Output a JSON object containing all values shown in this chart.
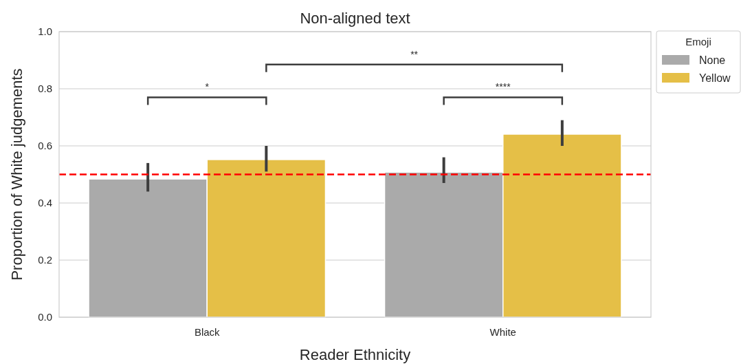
{
  "chart_data": {
    "type": "bar",
    "title": "Non-aligned text",
    "xlabel": "Reader Ethnicity",
    "ylabel": "Proportion of White judgements",
    "legend_title": "Emoji",
    "categories": [
      "Black",
      "White"
    ],
    "series": [
      {
        "name": "None",
        "color": "#aaaaaa",
        "values": [
          0.484,
          0.508
        ],
        "errors": [
          [
            0.44,
            0.54
          ],
          [
            0.47,
            0.56
          ]
        ]
      },
      {
        "name": "Yellow",
        "color": "#e5bf47",
        "values": [
          0.552,
          0.641
        ],
        "errors": [
          [
            0.51,
            0.6
          ],
          [
            0.6,
            0.69
          ]
        ]
      }
    ],
    "ylim": [
      0,
      1
    ],
    "yticks": [
      {
        "value": 0,
        "label": "0.0"
      },
      {
        "value": 0.2,
        "label": "0.2"
      },
      {
        "value": 0.4,
        "label": "0.4"
      },
      {
        "value": 0.6,
        "label": "0.6"
      },
      {
        "value": 0.8,
        "label": "0.8"
      },
      {
        "value": 1,
        "label": "1.0"
      }
    ],
    "grid": "y",
    "legend": "top right",
    "ref_lines": [
      {
        "axis": "y",
        "value": 0.5,
        "color": "#ff0000",
        "line_style": "dashed"
      }
    ],
    "annotations": [
      "*",
      "**",
      "****"
    ]
  }
}
